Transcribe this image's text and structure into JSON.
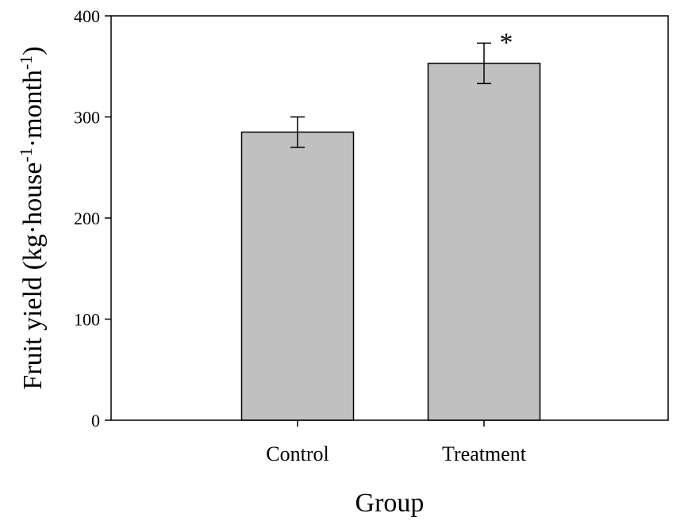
{
  "chart_data": {
    "type": "bar",
    "categories": [
      "Control",
      "Treatment"
    ],
    "values": [
      285,
      353
    ],
    "error": [
      15,
      20
    ],
    "annotations": [
      "",
      "*"
    ],
    "xlabel": "Group",
    "ylabel": {
      "prefix": "Fruit yield (kg·house",
      "sup1": "-1",
      "middle": "·month",
      "sup2": "-1",
      "suffix": ")"
    },
    "ylim": [
      0,
      400
    ],
    "yticks": [
      "0",
      "100",
      "200",
      "300",
      "400"
    ],
    "grid": false,
    "bar_color": "#c0c0c0"
  }
}
